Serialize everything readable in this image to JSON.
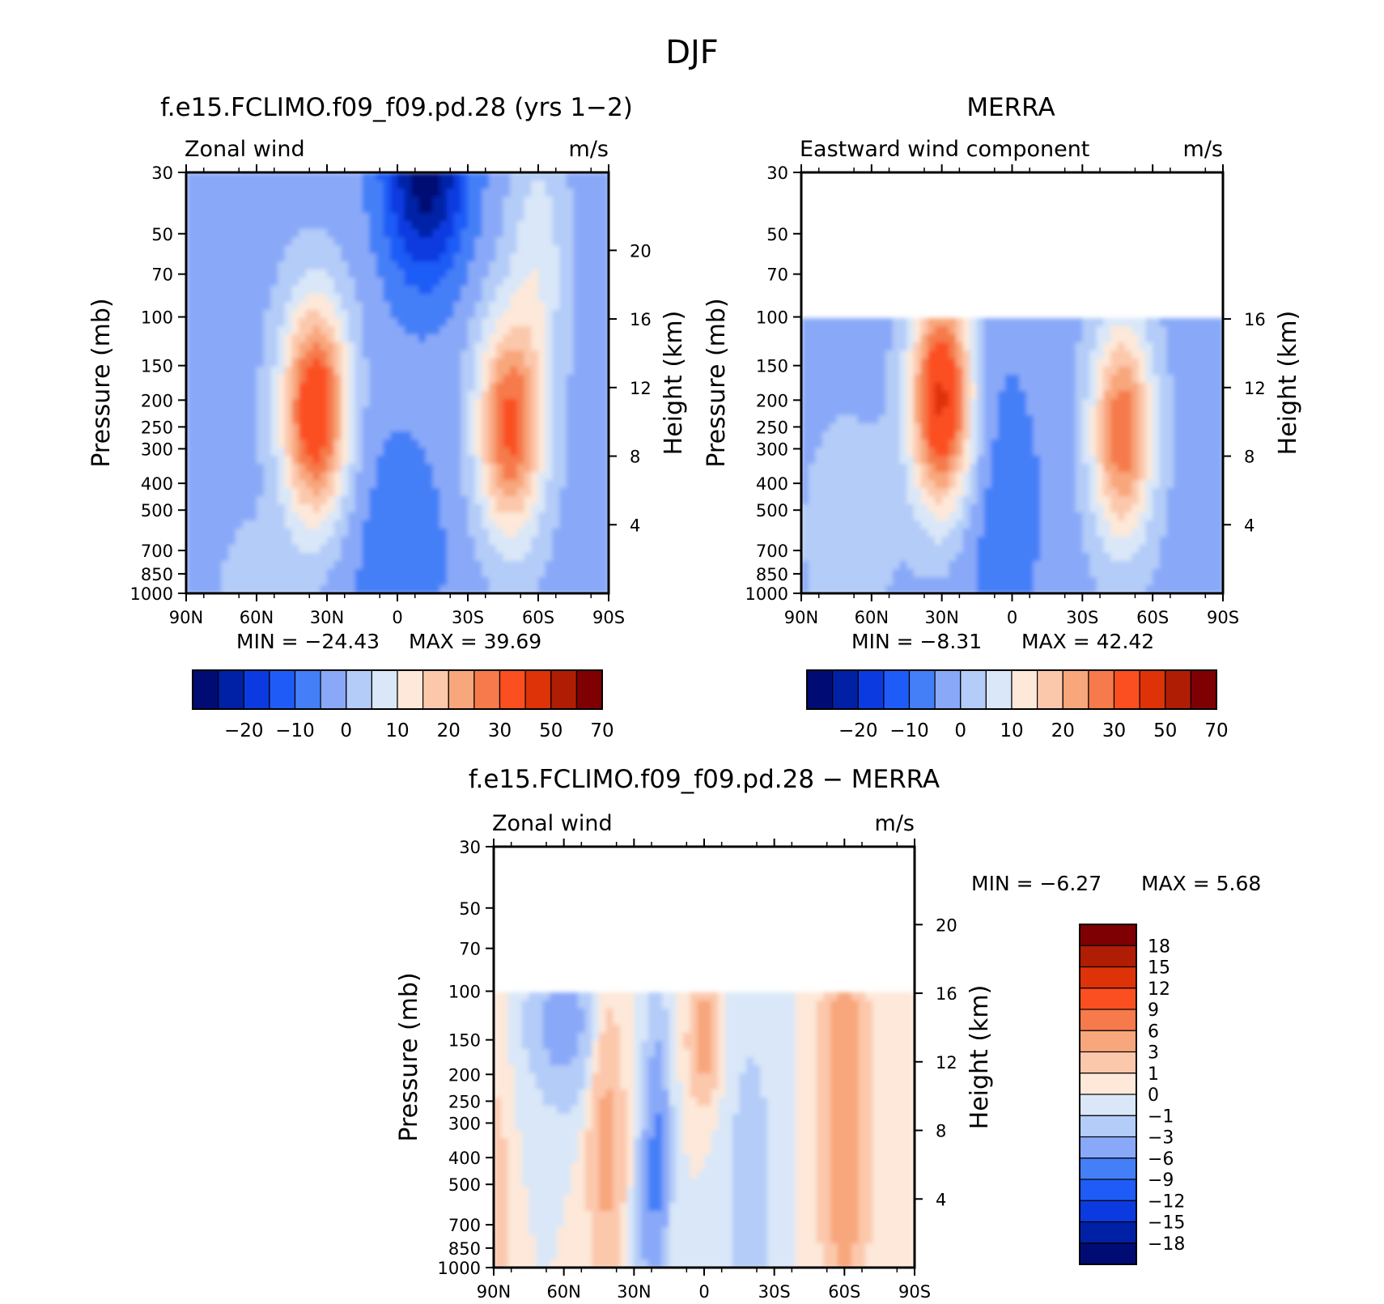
{
  "figure": {
    "title": "DJF"
  },
  "chart_data": [
    {
      "type": "contour",
      "title": "f.e15.FCLIMO.f09_f09.pd.28 (yrs 1−2)",
      "left_label": "Zonal wind",
      "units": "m/s",
      "ylabel": "Pressure (mb)",
      "ylabel_right": "Height (km)",
      "yscale": "log",
      "ylim": [
        1000,
        30
      ],
      "xlim": [
        90,
        -90
      ],
      "y_ticks": [
        "30",
        "50",
        "70",
        "100",
        "150",
        "200",
        "250",
        "300",
        "400",
        "500",
        "700",
        "850",
        "1000"
      ],
      "y_right_ticks": [
        "20",
        "16",
        "12",
        "8",
        "4"
      ],
      "x_ticks": [
        "90N",
        "60N",
        "30N",
        "0",
        "30S",
        "60S",
        "90S"
      ],
      "min_label": "MIN =  −24.43",
      "max_label": "MAX =   39.69",
      "min": -24.43,
      "max": 39.69,
      "colorbar": {
        "orientation": "horizontal",
        "labels": [
          "−20",
          "−10",
          "0",
          "10",
          "20",
          "30",
          "50",
          "70"
        ]
      },
      "features": [
        {
          "kind": "westerly jet",
          "lat": 35,
          "pressure": 250,
          "peak": 39.69
        },
        {
          "kind": "westerly jet",
          "lat": -50,
          "pressure": 250,
          "peak": 30
        },
        {
          "kind": "easterlies",
          "lat": -15,
          "pressure": 30,
          "peak": -24.43
        }
      ]
    },
    {
      "type": "contour",
      "title": "MERRA",
      "left_label": "Eastward wind component",
      "units": "m/s",
      "ylabel": "Pressure (mb)",
      "ylabel_right": "Height (km)",
      "yscale": "log",
      "ylim": [
        1000,
        30
      ],
      "data_top_pressure": 100,
      "xlim": [
        90,
        -90
      ],
      "y_ticks": [
        "30",
        "50",
        "70",
        "100",
        "150",
        "200",
        "250",
        "300",
        "400",
        "500",
        "700",
        "850",
        "1000"
      ],
      "y_right_ticks": [
        "16",
        "12",
        "8",
        "4"
      ],
      "x_ticks": [
        "90N",
        "60N",
        "30N",
        "0",
        "30S",
        "60S",
        "90S"
      ],
      "min_label": "MIN =   −8.31",
      "max_label": "MAX =   42.42",
      "min": -8.31,
      "max": 42.42,
      "colorbar": {
        "orientation": "horizontal",
        "labels": [
          "−20",
          "−10",
          "0",
          "10",
          "20",
          "30",
          "50",
          "70"
        ]
      },
      "features": [
        {
          "kind": "westerly jet",
          "lat": 30,
          "pressure": 200,
          "peak": 42.42
        },
        {
          "kind": "westerly jet",
          "lat": -47,
          "pressure": 250,
          "peak": 30
        }
      ]
    },
    {
      "type": "contour",
      "title": "f.e15.FCLIMO.f09_f09.pd.28 − MERRA",
      "left_label": "Zonal wind",
      "units": "m/s",
      "ylabel": "Pressure (mb)",
      "ylabel_right": "Height (km)",
      "yscale": "log",
      "ylim": [
        1000,
        30
      ],
      "data_top_pressure": 100,
      "xlim": [
        90,
        -90
      ],
      "y_ticks": [
        "30",
        "50",
        "70",
        "100",
        "150",
        "200",
        "250",
        "300",
        "400",
        "500",
        "700",
        "850",
        "1000"
      ],
      "y_right_ticks": [
        "20",
        "16",
        "12",
        "8",
        "4"
      ],
      "x_ticks": [
        "90N",
        "60N",
        "30N",
        "0",
        "30S",
        "60S",
        "90S"
      ],
      "min_label": "MIN =   −6.27",
      "max_label": "MAX =    5.68",
      "min": -6.27,
      "max": 5.68,
      "colorbar": {
        "orientation": "vertical",
        "labels": [
          "18",
          "15",
          "12",
          "9",
          "6",
          "3",
          "1",
          "0",
          "−1",
          "−3",
          "−6",
          "−9",
          "−12",
          "−15",
          "−18"
        ]
      }
    }
  ],
  "colors": {
    "scale15": [
      "#000c73",
      "#0021a6",
      "#0b3be0",
      "#1f5cf7",
      "#457ff8",
      "#89a9f8",
      "#b4ccf8",
      "#d9e7f8",
      "#fde8d9",
      "#fcc8ac",
      "#f8a67c",
      "#f67a4c",
      "#fb4f22",
      "#de3208",
      "#b01d05",
      "#7f0003"
    ],
    "scale16": [
      "#000c73",
      "#0021a6",
      "#0b3be0",
      "#1f5cf7",
      "#457ff8",
      "#89a9f8",
      "#b4ccf8",
      "#d9e7f8",
      "#fde8d9",
      "#fcc8ac",
      "#f8a67c",
      "#f67a4c",
      "#fb4f22",
      "#de3208",
      "#b01d05",
      "#7f0003"
    ]
  }
}
